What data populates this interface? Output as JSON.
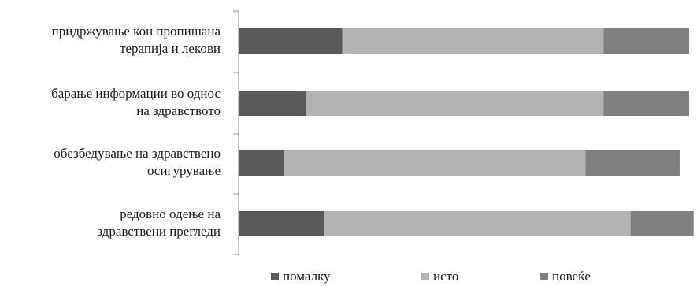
{
  "chart_data": {
    "type": "bar",
    "orientation": "horizontal",
    "stacked": true,
    "categories": [
      [
        "придржување кон пропишана",
        "терапија и лекови"
      ],
      [
        "барање информации во однос",
        "на здравството"
      ],
      [
        "обезбедување на здравствено",
        "осигурување"
      ],
      [
        "редовно одење на",
        "здравствени прегледи"
      ]
    ],
    "series": [
      {
        "name": "помалку",
        "color": "#595959",
        "values": [
          23,
          15,
          10,
          19
        ]
      },
      {
        "name": "исто",
        "color": "#b3b3b3",
        "values": [
          58,
          66,
          67,
          68
        ]
      },
      {
        "name": "повеќе",
        "color": "#808080",
        "values": [
          19,
          19,
          21,
          14
        ]
      }
    ],
    "xlim": [
      0,
      100
    ],
    "grid": false,
    "legend_position": "bottom",
    "title": "",
    "xlabel": "",
    "ylabel": ""
  }
}
